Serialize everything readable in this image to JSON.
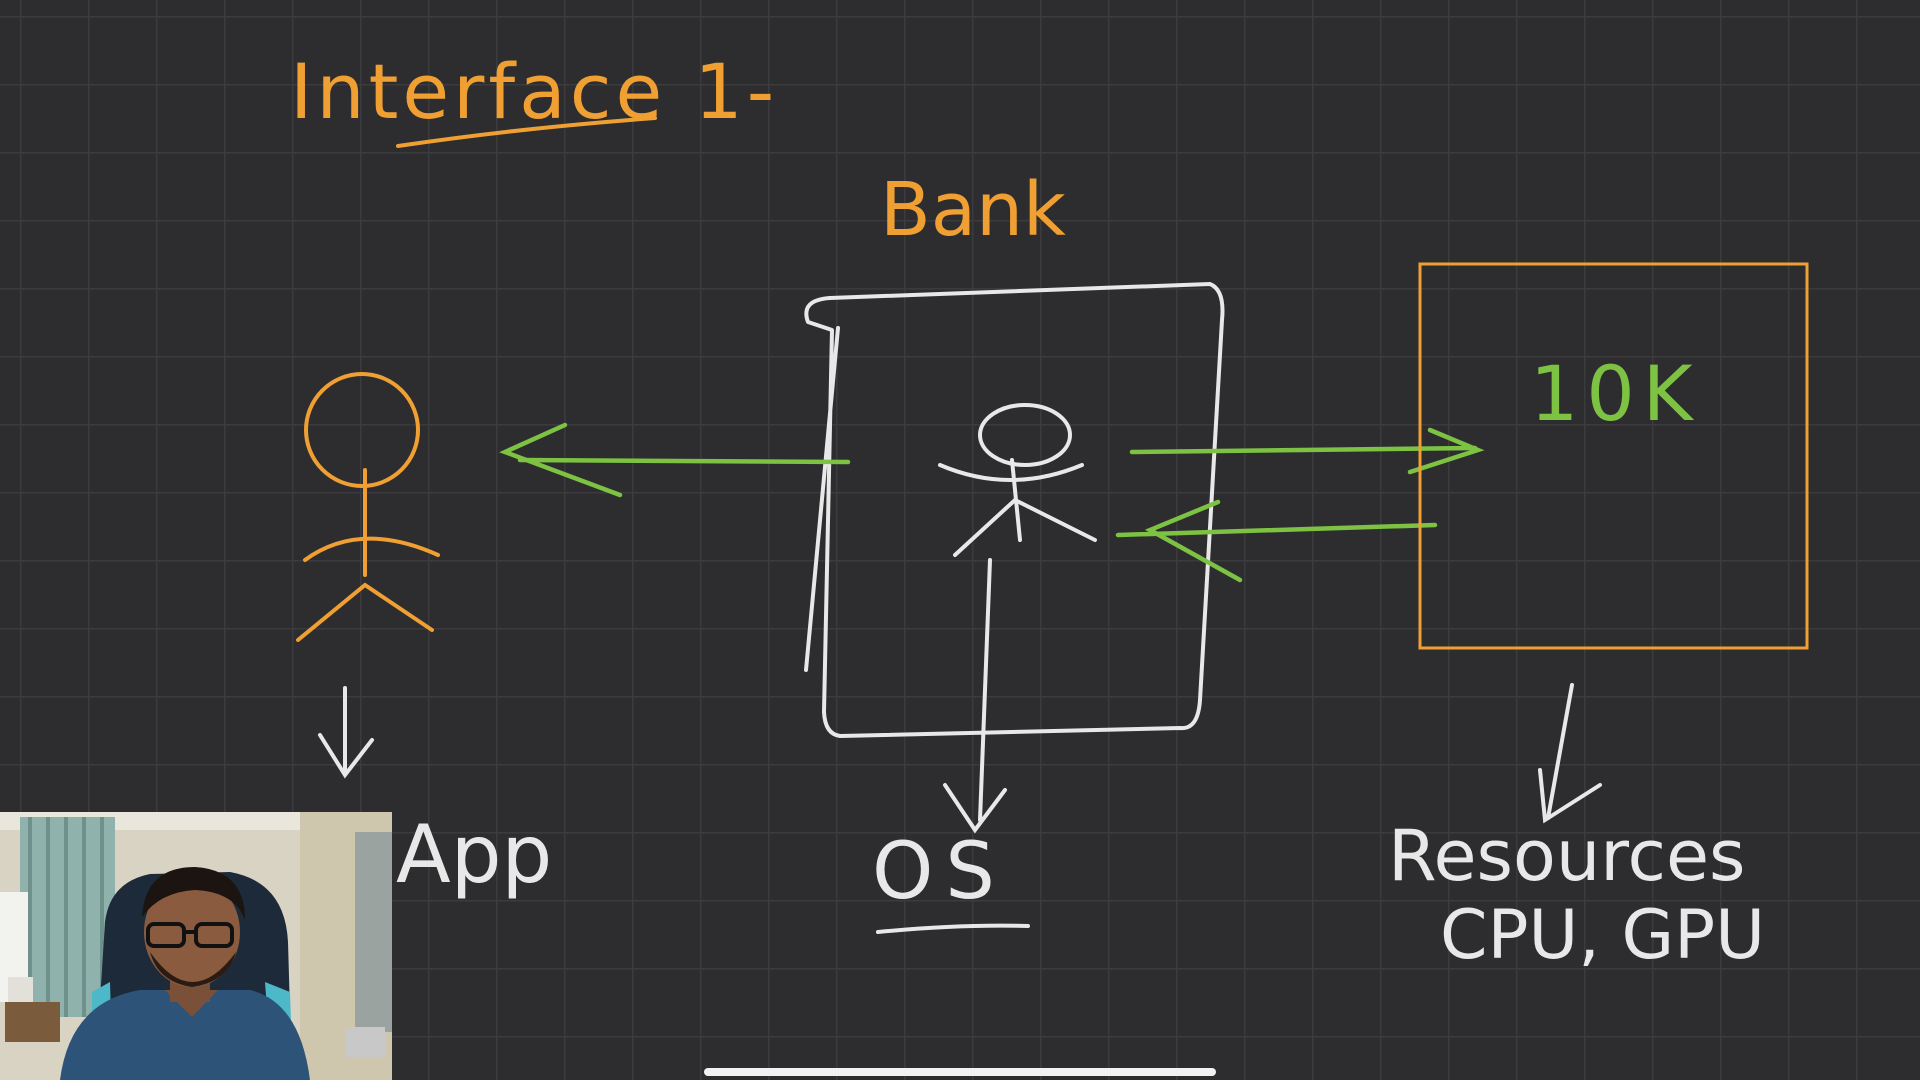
{
  "board": {
    "title": "Interface 1-",
    "bank_label": "Bank",
    "box_value": "10K",
    "app_label": "App",
    "os_label": "OS",
    "resources_label": "Resources",
    "resources_detail": "CPU, GPU"
  },
  "colors": {
    "background": "#2d2d2f",
    "grid": "#3b3b3e",
    "orange_ink": "#f0a033",
    "white_ink": "#e8e8e8",
    "green_ink": "#7dc242"
  },
  "icons": [
    "stick-figure-user",
    "stick-figure-banker",
    "arrow-left",
    "arrow-right",
    "arrow-down"
  ],
  "webcam": {
    "present": true
  }
}
